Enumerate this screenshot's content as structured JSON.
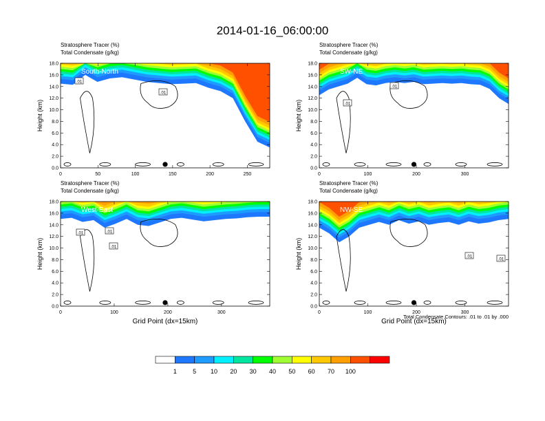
{
  "title": "2014-01-16_06:00:00",
  "footer_note": "Total Condensate Contours: .01 to .01 by .000",
  "colorbar": {
    "colors": [
      "#ffffff",
      "#1e78ff",
      "#1e9bff",
      "#00f0ff",
      "#00e6a0",
      "#00ff00",
      "#a0ff32",
      "#ffff00",
      "#ffc800",
      "#ffa000",
      "#ff5000",
      "#ff0000"
    ],
    "labels": [
      "1",
      "5",
      "10",
      "20",
      "30",
      "40",
      "50",
      "60",
      "70",
      "100"
    ]
  },
  "chart_data": [
    {
      "type": "contour",
      "panel_label": "South-North",
      "title_line1": "Stratosphere Tracer   (%)",
      "title_line2": "Total Condensate   (g/kg)",
      "ylabel": "Height (km)",
      "xlabel": "",
      "xlim": [
        0,
        280
      ],
      "ylim": [
        0,
        18
      ],
      "xticks": [
        "0",
        "50",
        "100",
        "150",
        "200",
        "250"
      ],
      "yticks": [
        "0.0",
        "2.0",
        "4.0",
        "6.0",
        "8.0",
        "10.0",
        "12.0",
        "14.0",
        "16.0",
        "18.0"
      ],
      "contour_labels": [
        ".01",
        ".01"
      ],
      "marker_x": 140,
      "tracer_base_km": [
        14.5,
        14.3,
        16.0,
        14.8,
        15.4,
        15.6,
        15.2,
        14.8,
        14.6,
        14.4,
        14.5,
        14.6,
        13.8,
        13.2,
        12.0,
        8.0,
        4.5,
        3.5
      ]
    },
    {
      "type": "contour",
      "panel_label": "SW-NE",
      "title_line1": "Stratosphere Tracer   (%)",
      "title_line2": "Total Condensate   (g/kg)",
      "ylabel": "Height (km)",
      "xlabel": "",
      "xlim": [
        0,
        390
      ],
      "ylim": [
        0,
        18
      ],
      "xticks": [
        "0",
        "100",
        "200",
        "300"
      ],
      "yticks": [
        "0.0",
        "2.0",
        "4.0",
        "6.0",
        "8.0",
        "10.0",
        "12.0",
        "14.0",
        "16.0",
        "18.0"
      ],
      "contour_labels": [
        ".01",
        ".01"
      ],
      "marker_x": 195,
      "tracer_base_km": [
        12.5,
        13.5,
        14.0,
        14.5,
        15.5,
        14.4,
        14.2,
        14.6,
        14.8,
        14.6,
        14.8,
        14.4,
        14.5,
        14.6,
        14.5,
        14.6,
        14.4,
        14.3,
        13.6,
        12.0,
        11.0
      ]
    },
    {
      "type": "contour",
      "panel_label": "West-East",
      "title_line1": "Stratosphere Tracer   (%)",
      "title_line2": "Total Condensate   (g/kg)",
      "ylabel": "Height (km)",
      "xlabel": "Grid Point (dx=15km)",
      "xlim": [
        0,
        390
      ],
      "ylim": [
        0,
        18
      ],
      "xticks": [
        "0",
        "100",
        "200",
        "300"
      ],
      "yticks": [
        "0.0",
        "2.0",
        "4.0",
        "6.0",
        "8.0",
        "10.0",
        "12.0",
        "14.0",
        "16.0",
        "18.0"
      ],
      "contour_labels": [
        ".01",
        ".01",
        ".01"
      ],
      "marker_x": 195,
      "tracer_base_km": [
        15.0,
        15.2,
        14.5,
        14.8,
        13.5,
        14.2,
        15.0,
        14.0,
        13.8,
        14.4,
        15.0,
        15.2,
        14.9,
        14.6,
        14.8,
        15.0,
        15.1,
        15.3,
        15.4,
        15.4
      ]
    },
    {
      "type": "contour",
      "panel_label": "NW-SE",
      "title_line1": "Stratosphere Tracer   (%)",
      "title_line2": "Total Condensate   (g/kg)",
      "ylabel": "Height (km)",
      "xlabel": "Grid Point (dx=15km)",
      "xlim": [
        0,
        390
      ],
      "ylim": [
        0,
        18
      ],
      "xticks": [
        "0",
        "100",
        "200",
        "300"
      ],
      "yticks": [
        "0.0",
        "2.0",
        "4.0",
        "6.0",
        "8.0",
        "10.0",
        "12.0",
        "14.0",
        "16.0",
        "18.0"
      ],
      "contour_labels": [
        ".01",
        ".01"
      ],
      "marker_x": 195,
      "tracer_base_km": [
        13.5,
        12.5,
        11.0,
        12.0,
        13.5,
        14.0,
        14.5,
        14.0,
        14.8,
        14.2,
        14.6,
        14.0,
        14.3,
        14.5,
        14.0,
        14.6,
        14.2,
        14.4,
        14.8,
        15.0
      ]
    }
  ]
}
